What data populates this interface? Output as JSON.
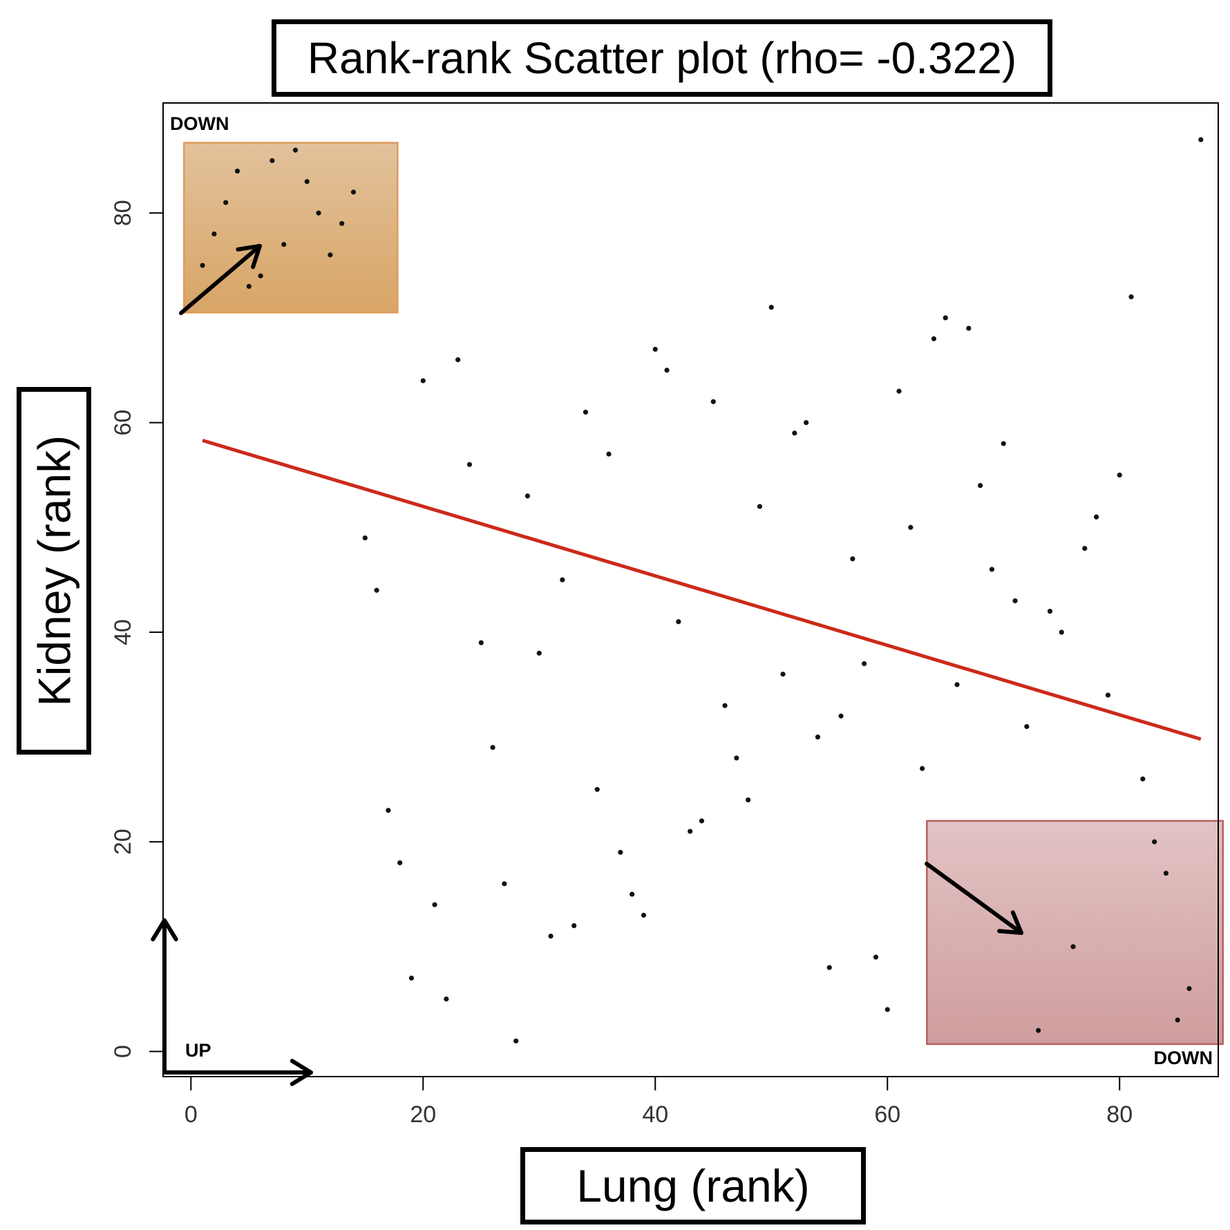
{
  "chart_data": {
    "type": "scatter",
    "title": "Rank-rank Scatter plot (rho= -0.322)",
    "xlabel": "Lung (rank)",
    "ylabel": "Kidney (rank)",
    "xlim": [
      -2.4,
      88.5
    ],
    "ylim": [
      -2.4,
      90.5
    ],
    "xticks": [
      0,
      20,
      40,
      60,
      80
    ],
    "yticks": [
      0,
      20,
      40,
      60,
      80
    ],
    "grid": false,
    "trend_line": {
      "x": [
        1,
        87
      ],
      "y": [
        58.3,
        29.8
      ],
      "color": "#cc2a1a"
    },
    "points": [
      {
        "x": 1,
        "y": 75
      },
      {
        "x": 2,
        "y": 78
      },
      {
        "x": 3,
        "y": 81
      },
      {
        "x": 4,
        "y": 84
      },
      {
        "x": 5,
        "y": 73
      },
      {
        "x": 6,
        "y": 74
      },
      {
        "x": 7,
        "y": 85
      },
      {
        "x": 8,
        "y": 77
      },
      {
        "x": 9,
        "y": 86
      },
      {
        "x": 10,
        "y": 83
      },
      {
        "x": 11,
        "y": 80
      },
      {
        "x": 12,
        "y": 76
      },
      {
        "x": 13,
        "y": 79
      },
      {
        "x": 14,
        "y": 82
      },
      {
        "x": 15,
        "y": 49
      },
      {
        "x": 16,
        "y": 44
      },
      {
        "x": 17,
        "y": 23
      },
      {
        "x": 18,
        "y": 18
      },
      {
        "x": 19,
        "y": 7
      },
      {
        "x": 20,
        "y": 64
      },
      {
        "x": 21,
        "y": 14
      },
      {
        "x": 22,
        "y": 5
      },
      {
        "x": 23,
        "y": 66
      },
      {
        "x": 24,
        "y": 56
      },
      {
        "x": 25,
        "y": 39
      },
      {
        "x": 26,
        "y": 29
      },
      {
        "x": 27,
        "y": 16
      },
      {
        "x": 28,
        "y": 1
      },
      {
        "x": 29,
        "y": 53
      },
      {
        "x": 30,
        "y": 38
      },
      {
        "x": 31,
        "y": 11
      },
      {
        "x": 32,
        "y": 45
      },
      {
        "x": 33,
        "y": 12
      },
      {
        "x": 34,
        "y": 61
      },
      {
        "x": 35,
        "y": 25
      },
      {
        "x": 36,
        "y": 57
      },
      {
        "x": 37,
        "y": 19
      },
      {
        "x": 38,
        "y": 15
      },
      {
        "x": 39,
        "y": 13
      },
      {
        "x": 40,
        "y": 67
      },
      {
        "x": 41,
        "y": 65
      },
      {
        "x": 42,
        "y": 41
      },
      {
        "x": 43,
        "y": 21
      },
      {
        "x": 44,
        "y": 22
      },
      {
        "x": 45,
        "y": 62
      },
      {
        "x": 46,
        "y": 33
      },
      {
        "x": 47,
        "y": 28
      },
      {
        "x": 48,
        "y": 24
      },
      {
        "x": 49,
        "y": 52
      },
      {
        "x": 50,
        "y": 71
      },
      {
        "x": 51,
        "y": 36
      },
      {
        "x": 52,
        "y": 59
      },
      {
        "x": 53,
        "y": 60
      },
      {
        "x": 54,
        "y": 30
      },
      {
        "x": 55,
        "y": 8
      },
      {
        "x": 56,
        "y": 32
      },
      {
        "x": 57,
        "y": 47
      },
      {
        "x": 58,
        "y": 37
      },
      {
        "x": 59,
        "y": 9
      },
      {
        "x": 60,
        "y": 4
      },
      {
        "x": 61,
        "y": 63
      },
      {
        "x": 62,
        "y": 50
      },
      {
        "x": 63,
        "y": 27
      },
      {
        "x": 64,
        "y": 68
      },
      {
        "x": 65,
        "y": 70
      },
      {
        "x": 66,
        "y": 35
      },
      {
        "x": 67,
        "y": 69
      },
      {
        "x": 68,
        "y": 54
      },
      {
        "x": 69,
        "y": 46
      },
      {
        "x": 70,
        "y": 58
      },
      {
        "x": 71,
        "y": 43
      },
      {
        "x": 72,
        "y": 31
      },
      {
        "x": 73,
        "y": 2
      },
      {
        "x": 74,
        "y": 42
      },
      {
        "x": 75,
        "y": 40
      },
      {
        "x": 76,
        "y": 10
      },
      {
        "x": 77,
        "y": 48
      },
      {
        "x": 78,
        "y": 51
      },
      {
        "x": 79,
        "y": 34
      },
      {
        "x": 80,
        "y": 55
      },
      {
        "x": 81,
        "y": 72
      },
      {
        "x": 82,
        "y": 26
      },
      {
        "x": 83,
        "y": 20
      },
      {
        "x": 84,
        "y": 17
      },
      {
        "x": 85,
        "y": 3
      },
      {
        "x": 86,
        "y": 6
      },
      {
        "x": 87,
        "y": 87
      }
    ],
    "highlight_regions": [
      {
        "label": "DOWN",
        "x_range": [
          -0.6,
          17.8
        ],
        "y_range": [
          70.5,
          86.7
        ],
        "color": "#d9a66a"
      },
      {
        "label": "DOWN",
        "x_range": [
          63.4,
          88.9
        ],
        "y_range": [
          0.7,
          22.0
        ],
        "color": "#cf9a9a"
      }
    ],
    "corner_labels": {
      "top_left": "DOWN",
      "bottom_left": "UP",
      "bottom_right": "DOWN"
    }
  }
}
